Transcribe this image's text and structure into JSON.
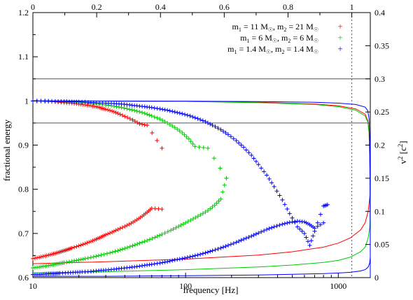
{
  "chart_data": {
    "type": "scatter",
    "title": "",
    "xlabel": "frequency [Hz]",
    "ylabel": "fractional energy",
    "y2label": "v",
    "y2label_sup": "2",
    "y2label_unit_open": " [c",
    "y2label_unit_sup": "2",
    "y2label_unit_close": "]",
    "xscale": "log",
    "xlim": [
      10,
      1620
    ],
    "ylim": [
      0.6,
      1.2
    ],
    "y2lim": [
      0,
      0.4
    ],
    "x2lim": [
      0,
      1.058
    ],
    "x_ticks": [
      {
        "value": 10,
        "label": "10"
      },
      {
        "value": 100,
        "label": "100"
      },
      {
        "value": 1000,
        "label": "1000"
      }
    ],
    "x2_ticks": [
      {
        "value": 0,
        "label": "0"
      },
      {
        "value": 0.2,
        "label": "0.2"
      },
      {
        "value": 0.4,
        "label": "0.4"
      },
      {
        "value": 0.6,
        "label": "0.6"
      },
      {
        "value": 0.8,
        "label": "0.8"
      },
      {
        "value": 1,
        "label": "1"
      }
    ],
    "y_ticks": [
      {
        "value": 0.6,
        "label": "0.6"
      },
      {
        "value": 0.7,
        "label": "0.7"
      },
      {
        "value": 0.8,
        "label": "0.8"
      },
      {
        "value": 0.9,
        "label": "0.9"
      },
      {
        "value": 1.0,
        "label": "1"
      },
      {
        "value": 1.1,
        "label": "1.1"
      },
      {
        "value": 1.2,
        "label": "1.2"
      }
    ],
    "y2_ticks": [
      {
        "value": 0,
        "label": "0"
      },
      {
        "value": 0.05,
        "label": "0.05"
      },
      {
        "value": 0.1,
        "label": "0.1"
      },
      {
        "value": 0.15,
        "label": "0.15"
      },
      {
        "value": 0.2,
        "label": "0.2"
      },
      {
        "value": 0.25,
        "label": "0.25"
      },
      {
        "value": 0.3,
        "label": "0.3"
      },
      {
        "value": 0.35,
        "label": "0.35"
      },
      {
        "value": 0.4,
        "label": "0.4"
      }
    ],
    "hlines": [
      0.95,
      1.05
    ],
    "x2_vline": 1.0,
    "legend_position": "top-right",
    "series": [
      {
        "color": "#ff0000",
        "legend": {
          "m1": "m",
          "m1_sub": "1",
          "m1_val": " = 11 M",
          "m1_sun": "☉",
          "m2": ", m",
          "m2_sub": "2",
          "m2_val": " = 21 M",
          "m2_sun": "☉"
        },
        "f_low_points": [
          [
            10,
            0.643
          ],
          [
            11,
            0.646
          ],
          [
            12,
            0.649
          ],
          [
            13,
            0.652
          ],
          [
            14,
            0.655
          ],
          [
            15,
            0.658
          ],
          [
            16,
            0.661
          ],
          [
            17,
            0.664
          ],
          [
            18,
            0.667
          ],
          [
            20,
            0.672
          ],
          [
            22,
            0.677
          ],
          [
            24,
            0.682
          ],
          [
            26,
            0.687
          ],
          [
            28,
            0.692
          ],
          [
            30,
            0.697
          ],
          [
            33,
            0.703
          ],
          [
            36,
            0.709
          ],
          [
            40,
            0.716
          ],
          [
            44,
            0.723
          ],
          [
            48,
            0.731
          ],
          [
            52,
            0.739
          ],
          [
            56,
            0.748
          ],
          [
            60,
            0.757
          ],
          [
            70,
            0.755
          ]
        ],
        "f_high_points": [
          [
            10,
            1.0
          ],
          [
            12,
            0.999
          ],
          [
            14,
            0.998
          ],
          [
            16,
            0.996
          ],
          [
            18,
            0.995
          ],
          [
            20,
            0.993
          ],
          [
            22,
            0.991
          ],
          [
            24,
            0.989
          ],
          [
            26,
            0.987
          ],
          [
            28,
            0.984
          ],
          [
            30,
            0.981
          ],
          [
            33,
            0.977
          ],
          [
            36,
            0.972
          ],
          [
            40,
            0.965
          ],
          [
            45,
            0.957
          ],
          [
            50,
            0.948
          ],
          [
            56,
            0.945
          ],
          [
            70,
            0.893
          ]
        ],
        "energy_curve": [
          [
            10,
            1.0
          ],
          [
            100,
            0.999
          ],
          [
            300,
            0.997
          ],
          [
            700,
            0.993
          ],
          [
            1000,
            0.989
          ],
          [
            1300,
            0.982
          ],
          [
            1500,
            0.97
          ],
          [
            1560,
            0.955
          ],
          [
            1590,
            0.93
          ],
          [
            1610,
            0.85
          ],
          [
            1618,
            0.72
          ]
        ],
        "v2_curve": [
          [
            10,
            0.021
          ],
          [
            30,
            0.024
          ],
          [
            100,
            0.028
          ],
          [
            300,
            0.034
          ],
          [
            500,
            0.039
          ],
          [
            800,
            0.046
          ],
          [
            1000,
            0.052
          ],
          [
            1200,
            0.06
          ],
          [
            1400,
            0.072
          ],
          [
            1500,
            0.083
          ],
          [
            1570,
            0.1
          ],
          [
            1605,
            0.12
          ],
          [
            1618,
            0.13
          ]
        ]
      },
      {
        "color": "#00cc00",
        "legend": {
          "m1": "m",
          "m1_sub": "1",
          "m1_val": " = 6  M",
          "m1_sun": "☉",
          "m2": ", m",
          "m2_sub": "2",
          "m2_val": " = 6 M",
          "m2_sun": "☉"
        },
        "f_low_points": [
          [
            10,
            0.622
          ],
          [
            11,
            0.624
          ],
          [
            12,
            0.626
          ],
          [
            13,
            0.628
          ],
          [
            14,
            0.63
          ],
          [
            15,
            0.632
          ],
          [
            16,
            0.634
          ],
          [
            18,
            0.637
          ],
          [
            20,
            0.64
          ],
          [
            22,
            0.643
          ],
          [
            25,
            0.647
          ],
          [
            28,
            0.651
          ],
          [
            32,
            0.656
          ],
          [
            36,
            0.661
          ],
          [
            40,
            0.666
          ],
          [
            45,
            0.672
          ],
          [
            50,
            0.678
          ],
          [
            56,
            0.684
          ],
          [
            63,
            0.691
          ],
          [
            70,
            0.698
          ],
          [
            80,
            0.707
          ],
          [
            90,
            0.716
          ],
          [
            100,
            0.724
          ],
          [
            112,
            0.733
          ],
          [
            125,
            0.742
          ],
          [
            140,
            0.752
          ],
          [
            155,
            0.764
          ],
          [
            170,
            0.778
          ],
          [
            185,
            0.825
          ]
        ],
        "f_high_points": [
          [
            10,
            1.0
          ],
          [
            12,
            1.0
          ],
          [
            14,
            0.999
          ],
          [
            16,
            0.998
          ],
          [
            18,
            0.998
          ],
          [
            20,
            0.997
          ],
          [
            23,
            0.995
          ],
          [
            26,
            0.994
          ],
          [
            30,
            0.991
          ],
          [
            34,
            0.988
          ],
          [
            38,
            0.985
          ],
          [
            43,
            0.981
          ],
          [
            48,
            0.977
          ],
          [
            54,
            0.972
          ],
          [
            60,
            0.966
          ],
          [
            68,
            0.959
          ],
          [
            76,
            0.95
          ],
          [
            85,
            0.94
          ],
          [
            95,
            0.928
          ],
          [
            105,
            0.914
          ],
          [
            115,
            0.897
          ],
          [
            140,
            0.893
          ],
          [
            185,
            0.825
          ]
        ],
        "energy_curve": [
          [
            10,
            1.0
          ],
          [
            100,
            0.999
          ],
          [
            300,
            0.996
          ],
          [
            700,
            0.992
          ],
          [
            1000,
            0.987
          ],
          [
            1300,
            0.979
          ],
          [
            1500,
            0.966
          ],
          [
            1560,
            0.952
          ],
          [
            1590,
            0.93
          ],
          [
            1610,
            0.85
          ],
          [
            1618,
            0.72
          ]
        ],
        "v2_curve": [
          [
            10,
            0.007
          ],
          [
            30,
            0.009
          ],
          [
            100,
            0.012
          ],
          [
            300,
            0.016
          ],
          [
            500,
            0.019
          ],
          [
            800,
            0.023
          ],
          [
            1000,
            0.026
          ],
          [
            1200,
            0.031
          ],
          [
            1400,
            0.039
          ],
          [
            1500,
            0.046
          ],
          [
            1570,
            0.06
          ],
          [
            1605,
            0.075
          ],
          [
            1618,
            0.09
          ]
        ]
      },
      {
        "color": "#0000ff",
        "legend": {
          "m1": "m",
          "m1_sub": "1",
          "m1_val": " = 1.4  M",
          "m1_sun": "☉",
          "m2": ", m",
          "m2_sub": "2",
          "m2_val": " = 1.4 M",
          "m2_sun": "☉"
        },
        "f_low_points": [
          [
            10,
            0.607
          ],
          [
            11,
            0.607
          ],
          [
            12,
            0.608
          ],
          [
            13,
            0.609
          ],
          [
            14,
            0.609
          ],
          [
            15,
            0.61
          ],
          [
            17,
            0.611
          ],
          [
            19,
            0.612
          ],
          [
            21,
            0.613
          ],
          [
            24,
            0.614
          ],
          [
            27,
            0.616
          ],
          [
            30,
            0.617
          ],
          [
            34,
            0.619
          ],
          [
            38,
            0.621
          ],
          [
            43,
            0.623
          ],
          [
            48,
            0.625
          ],
          [
            54,
            0.628
          ],
          [
            60,
            0.63
          ],
          [
            68,
            0.633
          ],
          [
            76,
            0.636
          ],
          [
            85,
            0.64
          ],
          [
            95,
            0.643
          ],
          [
            107,
            0.647
          ],
          [
            120,
            0.651
          ],
          [
            135,
            0.656
          ],
          [
            150,
            0.661
          ],
          [
            170,
            0.667
          ],
          [
            190,
            0.673
          ],
          [
            215,
            0.68
          ],
          [
            240,
            0.687
          ],
          [
            270,
            0.694
          ],
          [
            300,
            0.701
          ],
          [
            340,
            0.709
          ],
          [
            380,
            0.715
          ],
          [
            430,
            0.721
          ],
          [
            480,
            0.725
          ],
          [
            540,
            0.728
          ],
          [
            600,
            0.726
          ],
          [
            650,
            0.72
          ],
          [
            700,
            0.712
          ],
          [
            800,
            0.724
          ]
        ],
        "f_high_points": [
          [
            10,
            1.0
          ],
          [
            12,
            1.0
          ],
          [
            14,
            0.999
          ],
          [
            16,
            0.999
          ],
          [
            18,
            0.998
          ],
          [
            20,
            0.998
          ],
          [
            23,
            0.997
          ],
          [
            26,
            0.996
          ],
          [
            30,
            0.995
          ],
          [
            34,
            0.994
          ],
          [
            38,
            0.993
          ],
          [
            43,
            0.991
          ],
          [
            48,
            0.989
          ],
          [
            54,
            0.987
          ],
          [
            60,
            0.985
          ],
          [
            68,
            0.982
          ],
          [
            76,
            0.979
          ],
          [
            85,
            0.975
          ],
          [
            95,
            0.971
          ],
          [
            107,
            0.966
          ],
          [
            120,
            0.96
          ],
          [
            135,
            0.953
          ],
          [
            150,
            0.945
          ],
          [
            170,
            0.935
          ],
          [
            190,
            0.924
          ],
          [
            215,
            0.91
          ],
          [
            240,
            0.895
          ],
          [
            270,
            0.877
          ],
          [
            300,
            0.856
          ],
          [
            340,
            0.832
          ],
          [
            380,
            0.806
          ],
          [
            430,
            0.776
          ],
          [
            480,
            0.745
          ],
          [
            540,
            0.715
          ],
          [
            600,
            0.7
          ],
          [
            650,
            0.673
          ],
          [
            700,
            0.705
          ],
          [
            800,
            0.762
          ],
          [
            850,
            0.765
          ]
        ],
        "energy_curve": [
          [
            10,
            1.0
          ],
          [
            100,
            0.9995
          ],
          [
            300,
            0.9985
          ],
          [
            700,
            0.997
          ],
          [
            1000,
            0.995
          ],
          [
            1300,
            0.992
          ],
          [
            1500,
            0.986
          ],
          [
            1560,
            0.978
          ],
          [
            1590,
            0.96
          ],
          [
            1610,
            0.9
          ],
          [
            1618,
            0.72
          ],
          [
            1620,
            0.6
          ]
        ],
        "v2_curve": [
          [
            10,
            0.002
          ],
          [
            30,
            0.002
          ],
          [
            100,
            0.003
          ],
          [
            300,
            0.004
          ],
          [
            500,
            0.005
          ],
          [
            800,
            0.006
          ],
          [
            1000,
            0.007
          ],
          [
            1200,
            0.008
          ],
          [
            1400,
            0.01
          ],
          [
            1500,
            0.012
          ],
          [
            1570,
            0.016
          ],
          [
            1605,
            0.022
          ],
          [
            1618,
            0.03
          ]
        ]
      }
    ]
  }
}
